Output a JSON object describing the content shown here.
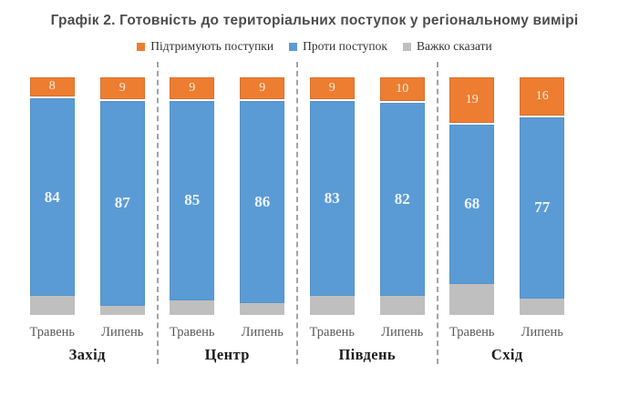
{
  "title": "Графік 2. Готовність до територіальних поступок у регіональному вимірі",
  "chart_data": {
    "type": "bar",
    "variant": "100-percent-stacked-column",
    "title": "Графік 2. Готовність до територіальних поступок у регіональному вимірі",
    "legend_position": "top",
    "grid": false,
    "ylim": [
      0,
      100
    ],
    "categories": [
      "Захід",
      "Центр",
      "Південь",
      "Схід"
    ],
    "sub_categories": [
      "Травень",
      "Липень"
    ],
    "series": [
      {
        "key": "support",
        "name": "Підтримують поступки",
        "color": "#ED7D31",
        "labels_shown": true,
        "values": [
          [
            8,
            9
          ],
          [
            9,
            9
          ],
          [
            9,
            10
          ],
          [
            19,
            16
          ]
        ]
      },
      {
        "key": "against",
        "name": "Проти поступок",
        "color": "#5B9BD5",
        "labels_shown": true,
        "values": [
          [
            84,
            87
          ],
          [
            85,
            86
          ],
          [
            83,
            82
          ],
          [
            68,
            77
          ]
        ]
      },
      {
        "key": "hard-to-say",
        "name": "Важко сказати",
        "color": "#BFBFBF",
        "labels_shown": false,
        "values": [
          [
            8,
            4
          ],
          [
            6,
            5
          ],
          [
            8,
            8
          ],
          [
            13,
            7
          ]
        ]
      }
    ]
  }
}
